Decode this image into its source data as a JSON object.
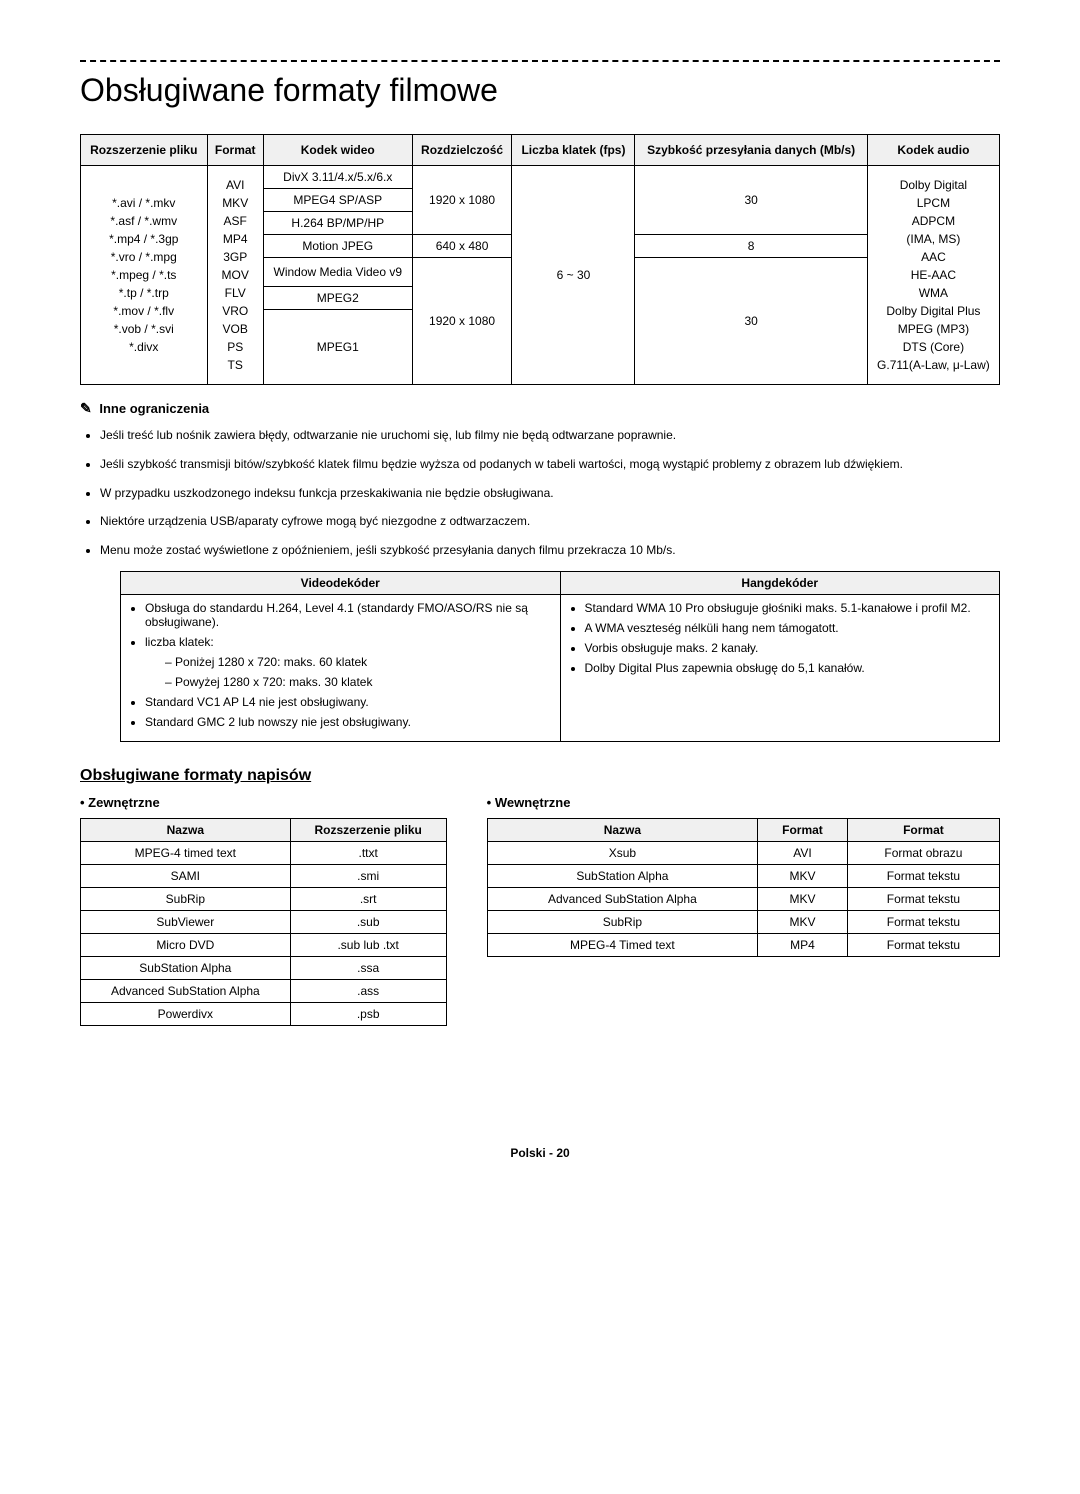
{
  "title": "Obsługiwane formaty filmowe",
  "main_table": {
    "headers": {
      "ext": "Rozszerzenie pliku",
      "format": "Format",
      "vcodec": "Kodek wideo",
      "resolution": "Rozdzielczość",
      "fps": "Liczba klatek (fps)",
      "bitrate": "Szybkość przesyłania danych (Mb/s)",
      "acodec": "Kodek audio"
    },
    "extensions": "*.avi / *.mkv\n*.asf / *.wmv\n*.mp4 / *.3gp\n*.vro / *.mpg\n*.mpeg / *.ts\n*.tp / *.trp\n*.mov / *.flv\n*.vob / *.svi\n*.divx",
    "formats": "AVI\nMKV\nASF\nMP4\n3GP\nMOV\nFLV\nVRO\nVOB\nPS\nTS",
    "vcodec1": "DivX 3.11/4.x/5.x/6.x",
    "vcodec2": "MPEG4 SP/ASP",
    "vcodec3": "H.264 BP/MP/HP",
    "vcodec4": "Motion JPEG",
    "vcodec5": "Window Media Video v9",
    "vcodec6": "MPEG2",
    "vcodec7": "MPEG1",
    "res1": "1920 x 1080",
    "res2": "640 x 480",
    "res3": "1920 x 1080",
    "fps_all": "6 ~ 30",
    "bitrate1": "30",
    "bitrate2": "8",
    "bitrate3": "30",
    "acodec": "Dolby Digital\nLPCM\nADPCM\n(IMA, MS)\nAAC\nHE-AAC\nWMA\nDolby Digital Plus\nMPEG (MP3)\nDTS (Core)\nG.711(A-Law, μ-Law)"
  },
  "restrictions": {
    "heading": "Inne ograniczenia",
    "items": [
      "Jeśli treść lub nośnik zawiera błędy, odtwarzanie nie uruchomi się, lub filmy nie będą odtwarzane poprawnie.",
      "Jeśli szybkość transmisji bitów/szybkość klatek filmu będzie wyższa od podanych w tabeli wartości, mogą wystąpić problemy z obrazem lub dźwiękiem.",
      "W przypadku uszkodzonego indeksu funkcja przeskakiwania nie będzie obsługiwana.",
      "Niektóre urządzenia USB/aparaty cyfrowe mogą być niezgodne z odtwarzaczem.",
      "Menu może zostać wyświetlone z opóźnieniem, jeśli szybkość przesyłania danych filmu przekracza 10 Mb/s."
    ]
  },
  "decoder_table": {
    "h_video": "Videodekóder",
    "h_audio": "Hangdekóder",
    "video": {
      "l1": "Obsługa do standardu H.264, Level 4.1 (standardy FMO/ASO/RS nie są obsługiwane).",
      "l2": "liczba klatek:",
      "l2a": "Poniżej 1280 x 720: maks. 60 klatek",
      "l2b": "Powyżej 1280 x 720: maks. 30 klatek",
      "l3": "Standard VC1 AP L4 nie jest obsługiwany.",
      "l4": "Standard GMC 2 lub nowszy nie jest obsługiwany."
    },
    "audio": {
      "l1": "Standard WMA 10 Pro obsługuje głośniki maks. 5.1-kanałowe i profil M2.",
      "l2": "A WMA veszteség nélküli hang nem támogatott.",
      "l3": "Vorbis obsługuje maks. 2 kanały.",
      "l4": "Dolby Digital Plus zapewnia obsługę do 5,1 kanałów."
    }
  },
  "subtitles": {
    "heading": "Obsługiwane formaty napisów",
    "external": {
      "title": "Zewnętrzne",
      "h_name": "Nazwa",
      "h_ext": "Rozszerzenie pliku",
      "rows": [
        [
          "MPEG-4 timed text",
          ".ttxt"
        ],
        [
          "SAMI",
          ".smi"
        ],
        [
          "SubRip",
          ".srt"
        ],
        [
          "SubViewer",
          ".sub"
        ],
        [
          "Micro DVD",
          ".sub lub .txt"
        ],
        [
          "SubStation Alpha",
          ".ssa"
        ],
        [
          "Advanced SubStation Alpha",
          ".ass"
        ],
        [
          "Powerdivx",
          ".psb"
        ]
      ]
    },
    "internal": {
      "title": "Wewnętrzne",
      "h_name": "Nazwa",
      "h_format": "Format",
      "h_format2": "Format",
      "rows": [
        [
          "Xsub",
          "AVI",
          "Format obrazu"
        ],
        [
          "SubStation Alpha",
          "MKV",
          "Format tekstu"
        ],
        [
          "Advanced SubStation Alpha",
          "MKV",
          "Format tekstu"
        ],
        [
          "SubRip",
          "MKV",
          "Format tekstu"
        ],
        [
          "MPEG-4 Timed text",
          "MP4",
          "Format tekstu"
        ]
      ]
    }
  },
  "footer": "Polski - 20"
}
